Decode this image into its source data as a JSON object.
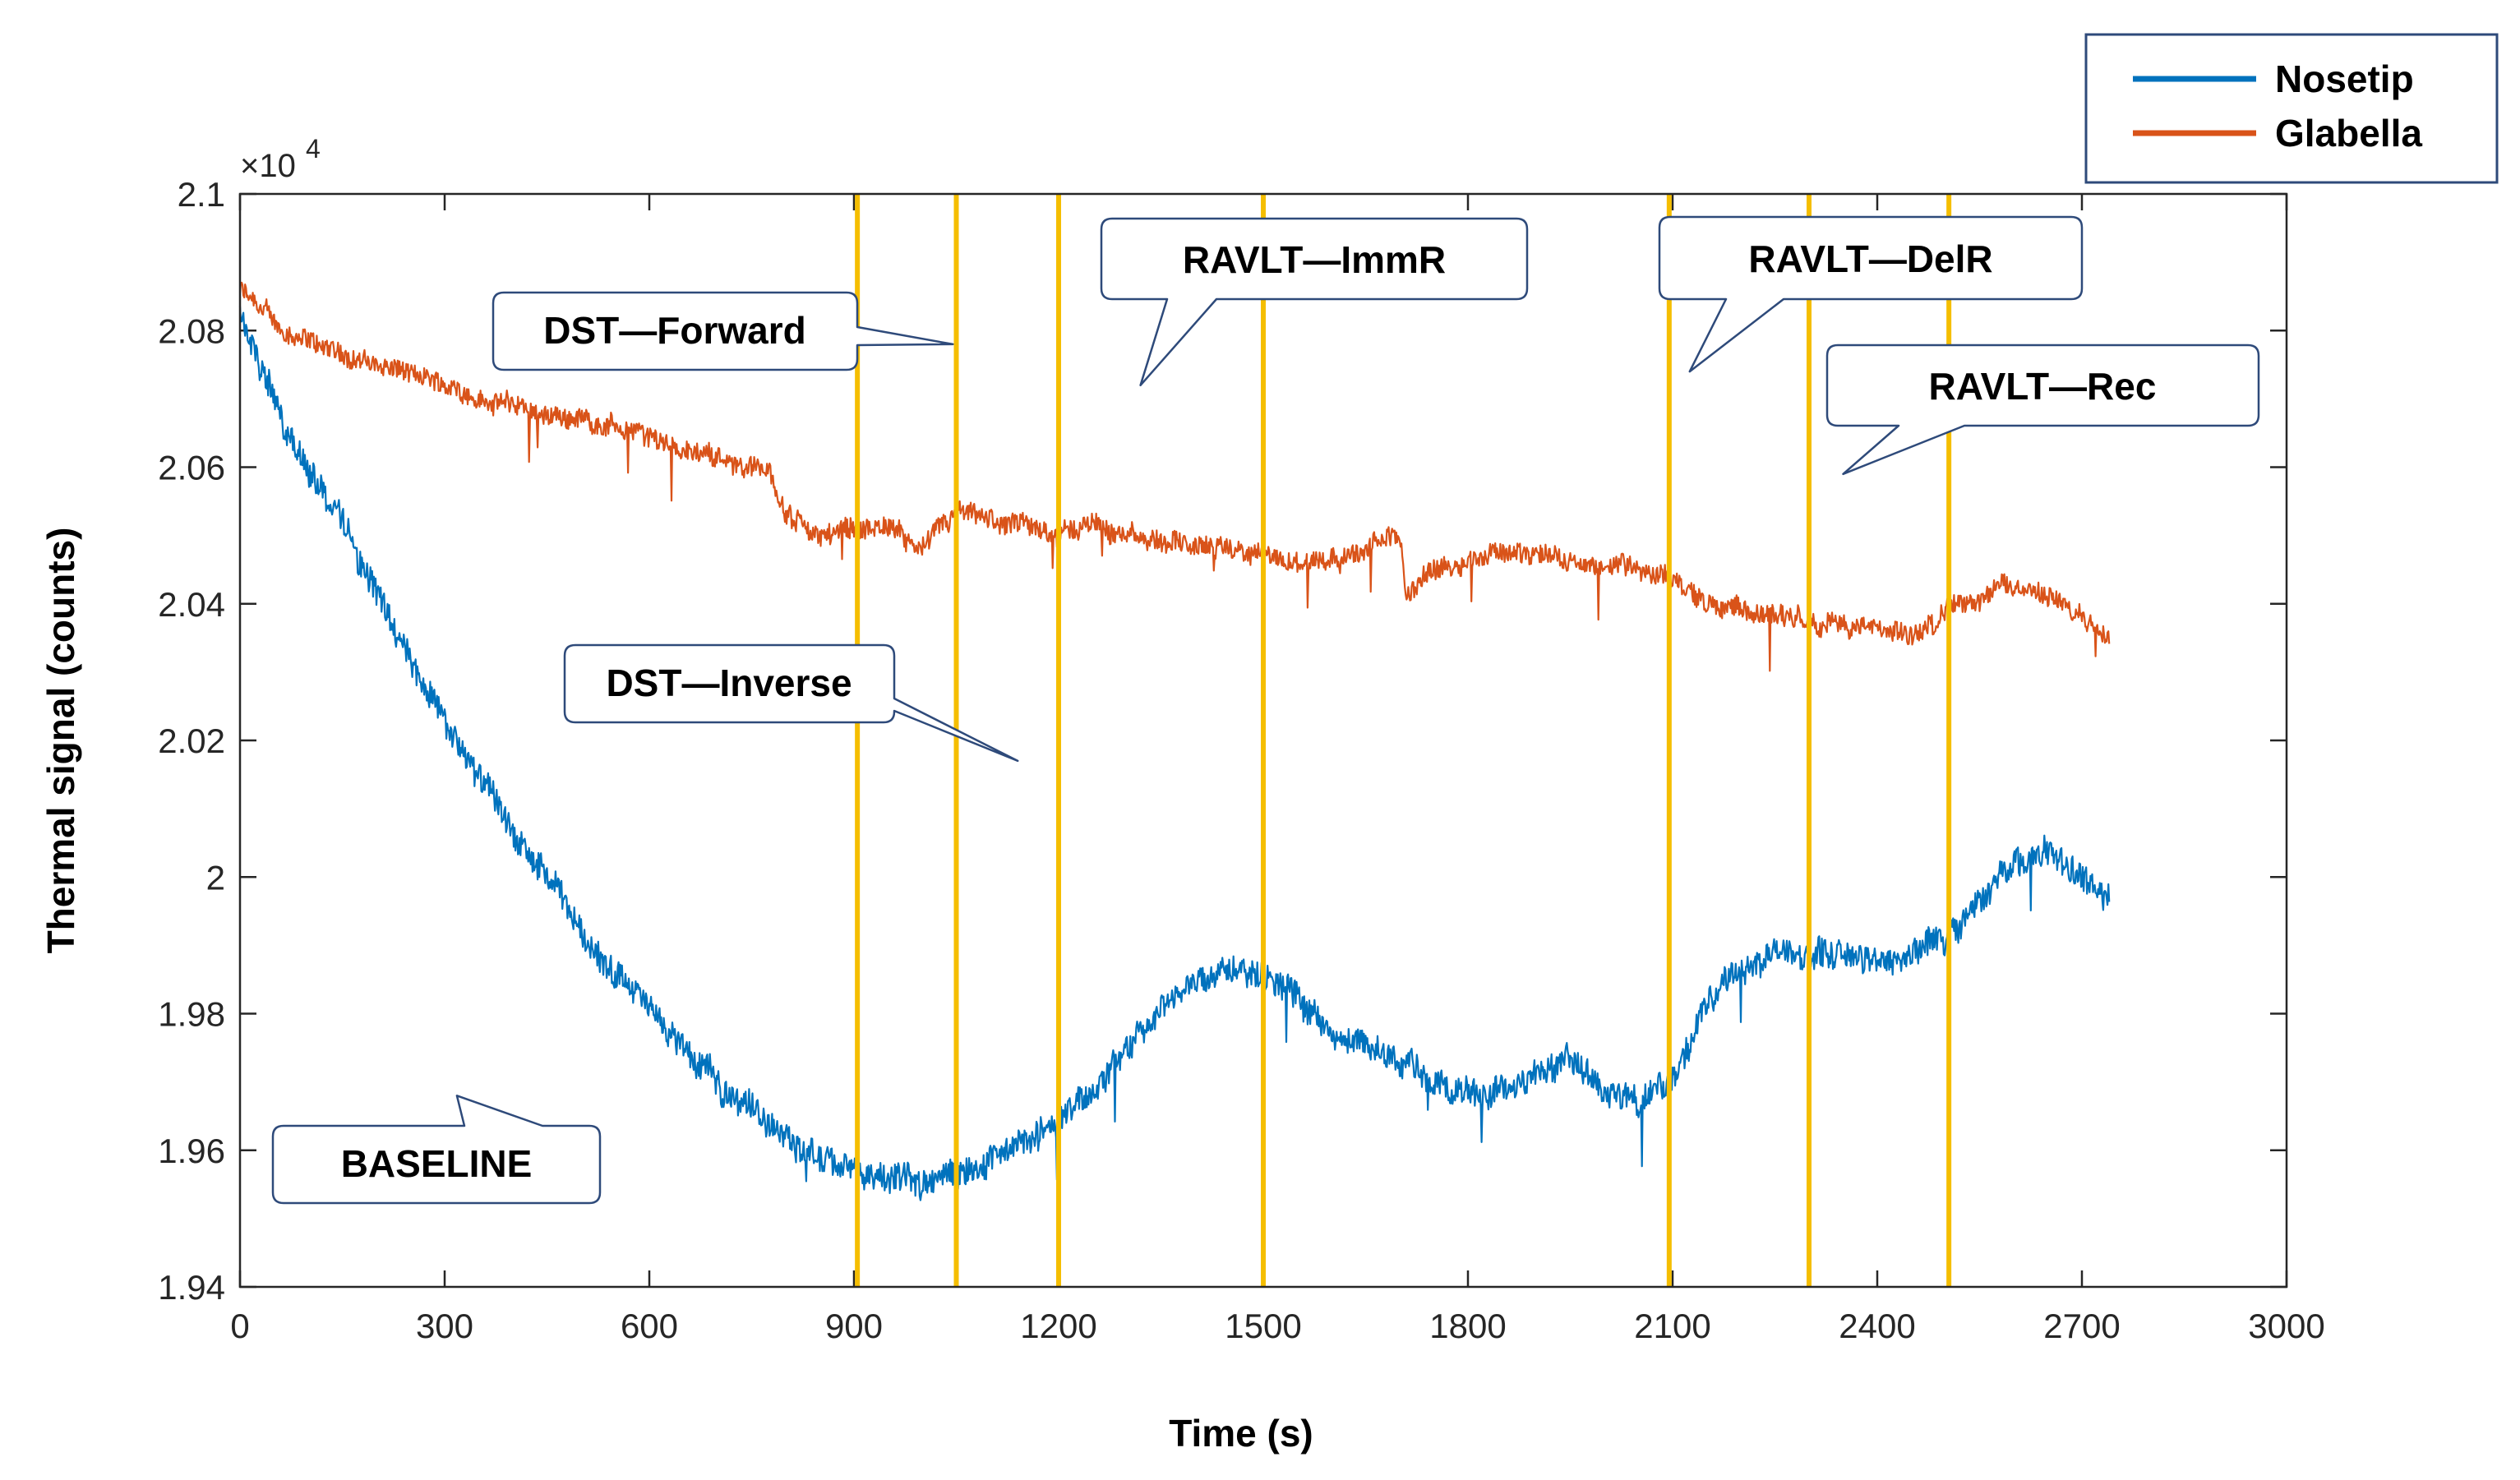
{
  "chart_data": {
    "type": "line",
    "title": "",
    "xlabel": "Time (s)",
    "ylabel": "Thermal signal (counts)",
    "y_exponent_label": "×10",
    "y_exponent_power": "4",
    "xlim": [
      0,
      3000
    ],
    "ylim": [
      1.94,
      2.1
    ],
    "x_ticks": [
      0,
      300,
      600,
      900,
      1200,
      1500,
      1800,
      2100,
      2400,
      2700,
      3000
    ],
    "x_tick_labels": [
      "0",
      "300",
      "600",
      "900",
      "1200",
      "1500",
      "1800",
      "2100",
      "2400",
      "2700",
      "3000"
    ],
    "y_ticks": [
      1.94,
      1.96,
      1.98,
      2.0,
      2.02,
      2.04,
      2.06,
      2.08,
      2.1
    ],
    "y_tick_labels": [
      "1.94",
      "1.96",
      "1.98",
      "2",
      "2.02",
      "2.04",
      "2.06",
      "2.08",
      "2.1"
    ],
    "legend_position": "top-right outside",
    "series": [
      {
        "name": "Nosetip",
        "color": "#0072BD",
        "noise": 0.0025,
        "x": [
          0,
          30,
          80,
          150,
          220,
          300,
          380,
          460,
          540,
          620,
          700,
          780,
          850,
          900,
          950,
          1000,
          1050,
          1100,
          1150,
          1200,
          1250,
          1300,
          1350,
          1400,
          1450,
          1500,
          1550,
          1600,
          1650,
          1700,
          1750,
          1800,
          1850,
          1900,
          1950,
          2000,
          2050,
          2100,
          2150,
          2200,
          2250,
          2300,
          2350,
          2400,
          2450,
          2500,
          2550,
          2600,
          2650,
          2700,
          2740
        ],
        "y": [
          2.083,
          2.075,
          2.064,
          2.052,
          2.038,
          2.023,
          2.01,
          1.998,
          1.987,
          1.978,
          1.97,
          1.964,
          1.958,
          1.957,
          1.956,
          1.955,
          1.957,
          1.959,
          1.961,
          1.964,
          1.969,
          1.975,
          1.981,
          1.985,
          1.987,
          1.987,
          1.982,
          1.977,
          1.975,
          1.973,
          1.97,
          1.968,
          1.968,
          1.971,
          1.973,
          1.969,
          1.967,
          1.97,
          1.981,
          1.987,
          1.989,
          1.989,
          1.989,
          1.988,
          1.989,
          1.991,
          1.996,
          2.002,
          2.004,
          2.0,
          1.997
        ]
      },
      {
        "name": "Glabella",
        "color": "#D95319",
        "noise": 0.0018,
        "x": [
          0,
          50,
          100,
          200,
          300,
          360,
          450,
          550,
          650,
          780,
          800,
          850,
          900,
          950,
          1000,
          1050,
          1100,
          1150,
          1200,
          1250,
          1300,
          1400,
          1500,
          1550,
          1600,
          1650,
          1700,
          1710,
          1750,
          1800,
          1850,
          1900,
          1950,
          2000,
          2050,
          2100,
          2150,
          2200,
          2250,
          2300,
          2350,
          2400,
          2450,
          2500,
          2550,
          2600,
          2650,
          2700,
          2740
        ],
        "y": [
          2.086,
          2.081,
          2.078,
          2.075,
          2.072,
          2.07,
          2.068,
          2.066,
          2.063,
          2.059,
          2.053,
          2.05,
          2.051,
          2.051,
          2.048,
          2.053,
          2.052,
          2.051,
          2.05,
          2.052,
          2.05,
          2.048,
          2.047,
          2.046,
          2.047,
          2.048,
          2.05,
          2.041,
          2.045,
          2.047,
          2.048,
          2.047,
          2.046,
          2.046,
          2.045,
          2.044,
          2.04,
          2.039,
          2.038,
          2.038,
          2.037,
          2.036,
          2.035,
          2.039,
          2.041,
          2.043,
          2.041,
          2.038,
          2.036
        ]
      }
    ],
    "vertical_markers": {
      "color": "#F5BE00",
      "x": [
        905,
        1050,
        1200,
        1500,
        2095,
        2300,
        2505
      ]
    },
    "annotations": [
      {
        "text": "BASELINE",
        "anchor": [
          318,
          1.968
        ]
      },
      {
        "text": "DST—Forward",
        "anchor": [
          1045,
          2.078
        ]
      },
      {
        "text": "DST—Inverse",
        "anchor": [
          1140,
          2.017
        ]
      },
      {
        "text": "RAVLT—ImmR",
        "anchor": [
          1320,
          2.072
        ]
      },
      {
        "text": "RAVLT—DelR",
        "anchor": [
          2125,
          2.074
        ]
      },
      {
        "text": "RAVLT—Rec",
        "anchor": [
          2350,
          2.059
        ]
      }
    ]
  }
}
